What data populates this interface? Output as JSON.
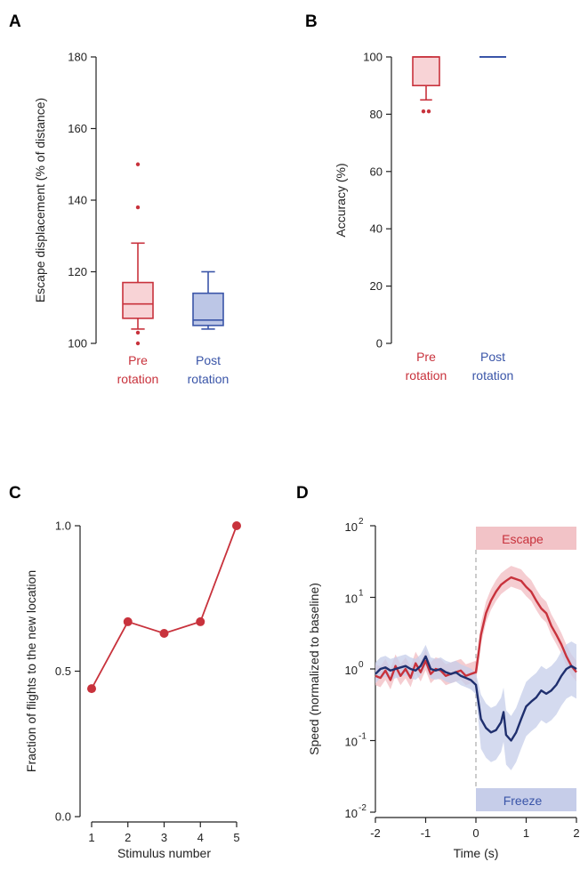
{
  "chart_data": [
    {
      "panel": "A",
      "type": "box",
      "ylabel": "Escape displacement (% of distance)",
      "ylim": [
        100,
        180
      ],
      "yticks": [
        100,
        120,
        140,
        160,
        180
      ],
      "groups": [
        {
          "label_lines": [
            "Pre",
            "rotation"
          ],
          "color": "#c8323c",
          "fill": "#f8d3d6",
          "whisker_low": 104,
          "q1": 107,
          "median": 111,
          "q3": 117,
          "whisker_high": 128,
          "outliers": [
            100,
            103,
            138,
            150
          ]
        },
        {
          "label_lines": [
            "Post",
            "rotation"
          ],
          "color": "#3a55a8",
          "fill": "#bcc6e6",
          "whisker_low": 104,
          "q1": 105,
          "median": 106.5,
          "q3": 114,
          "whisker_high": 120,
          "outliers": []
        }
      ]
    },
    {
      "panel": "B",
      "type": "box",
      "ylabel": "Accuracy (%)",
      "ylim": [
        0,
        100
      ],
      "yticks": [
        0,
        20,
        40,
        60,
        80,
        100
      ],
      "groups": [
        {
          "label_lines": [
            "Pre",
            "rotation"
          ],
          "color": "#c8323c",
          "fill": "#f8d3d6",
          "whisker_low": 85,
          "q1": 90,
          "median": 100,
          "q3": 100,
          "whisker_high": 100,
          "outliers": [
            81,
            81
          ]
        },
        {
          "label_lines": [
            "Post",
            "rotation"
          ],
          "color": "#3a55a8",
          "fill": "#bcc6e6",
          "whisker_low": 100,
          "q1": 100,
          "median": 100,
          "q3": 100,
          "whisker_high": 100,
          "outliers": []
        }
      ]
    },
    {
      "panel": "C",
      "type": "line",
      "xlabel": "Stimulus number",
      "ylabel": "Fraction of flights to the new location",
      "x": [
        1,
        2,
        3,
        4,
        5
      ],
      "y": [
        0.44,
        0.67,
        0.63,
        0.67,
        1.0
      ],
      "xticks": [
        "1",
        "2",
        "3",
        "4",
        "5"
      ],
      "yticks": [
        "0.0",
        "0.5",
        "1.0"
      ],
      "ylim": [
        0,
        1
      ],
      "color": "#c8323c"
    },
    {
      "panel": "D",
      "type": "line",
      "yscale": "log",
      "xlabel": "Time (s)",
      "ylabel": "Speed (normalized to baseline)",
      "xlim": [
        -2,
        2
      ],
      "ylim": [
        0.01,
        100
      ],
      "xticks": [
        "-2",
        "-1",
        "0",
        "1",
        "2"
      ],
      "yticks": [
        {
          "base": "10",
          "exp": "-2"
        },
        {
          "base": "10",
          "exp": "-1"
        },
        {
          "base": "10",
          "exp": "0"
        },
        {
          "base": "10",
          "exp": "1"
        },
        {
          "base": "10",
          "exp": "2"
        }
      ],
      "annotations": [
        {
          "text": "Escape",
          "color": "#c8323c",
          "fill": "#f2c3c7"
        },
        {
          "text": "Freeze",
          "color": "#3a55a8",
          "fill": "#c6cde9"
        }
      ],
      "series": [
        {
          "color": "#c8323c",
          "band_color": "#f1bcc1",
          "x": [
            -2.0,
            -1.9,
            -1.8,
            -1.7,
            -1.6,
            -1.5,
            -1.4,
            -1.3,
            -1.2,
            -1.1,
            -1.0,
            -0.9,
            -0.8,
            -0.7,
            -0.6,
            -0.5,
            -0.4,
            -0.3,
            -0.2,
            -0.1,
            0.0,
            0.05,
            0.1,
            0.2,
            0.3,
            0.4,
            0.5,
            0.6,
            0.7,
            0.8,
            0.9,
            1.0,
            1.1,
            1.2,
            1.3,
            1.4,
            1.5,
            1.6,
            1.7,
            1.8,
            1.9,
            2.0
          ],
          "y": [
            0.8,
            0.75,
            0.95,
            0.7,
            1.1,
            0.8,
            1.0,
            0.75,
            1.2,
            0.9,
            1.3,
            0.85,
            1.0,
            0.95,
            0.8,
            0.85,
            0.9,
            0.95,
            0.8,
            0.85,
            0.9,
            1.6,
            3,
            6,
            9,
            12,
            15,
            17,
            19,
            18,
            17,
            14,
            12,
            9,
            7,
            6,
            4,
            3,
            2.2,
            1.5,
            1.1,
            0.9
          ]
        },
        {
          "color": "#1f2f6e",
          "band_color": "#c6cde9",
          "x": [
            -2.0,
            -1.9,
            -1.8,
            -1.7,
            -1.6,
            -1.5,
            -1.4,
            -1.3,
            -1.2,
            -1.1,
            -1.0,
            -0.9,
            -0.8,
            -0.7,
            -0.6,
            -0.5,
            -0.4,
            -0.3,
            -0.2,
            -0.1,
            0.0,
            0.1,
            0.2,
            0.3,
            0.4,
            0.5,
            0.55,
            0.6,
            0.7,
            0.8,
            0.9,
            1.0,
            1.1,
            1.2,
            1.3,
            1.4,
            1.5,
            1.6,
            1.7,
            1.8,
            1.9,
            2.0
          ],
          "y": [
            0.85,
            1.0,
            1.05,
            0.95,
            1.0,
            1.05,
            1.1,
            1.0,
            0.95,
            1.1,
            1.5,
            1.0,
            0.95,
            1.0,
            0.9,
            0.85,
            0.9,
            0.8,
            0.75,
            0.7,
            0.6,
            0.2,
            0.15,
            0.13,
            0.14,
            0.18,
            0.25,
            0.12,
            0.1,
            0.13,
            0.2,
            0.3,
            0.35,
            0.4,
            0.5,
            0.45,
            0.5,
            0.6,
            0.8,
            1.0,
            1.1,
            1.0
          ]
        }
      ]
    }
  ]
}
